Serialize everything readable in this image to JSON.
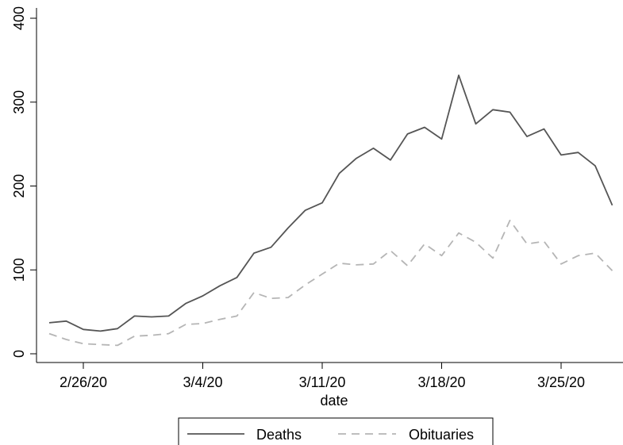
{
  "chart_data": {
    "type": "line",
    "title": "",
    "xlabel": "date",
    "ylabel": "",
    "ylim": [
      0,
      400
    ],
    "yticks": [
      0,
      100,
      200,
      300,
      400
    ],
    "xticks": [
      "2/26/20",
      "3/4/20",
      "3/11/20",
      "3/18/20",
      "3/25/20"
    ],
    "x": [
      "2/24/20",
      "2/25/20",
      "2/26/20",
      "2/27/20",
      "2/28/20",
      "2/29/20",
      "3/1/20",
      "3/2/20",
      "3/3/20",
      "3/4/20",
      "3/5/20",
      "3/6/20",
      "3/7/20",
      "3/8/20",
      "3/9/20",
      "3/10/20",
      "3/11/20",
      "3/12/20",
      "3/13/20",
      "3/14/20",
      "3/15/20",
      "3/16/20",
      "3/17/20",
      "3/18/20",
      "3/19/20",
      "3/20/20",
      "3/21/20",
      "3/22/20",
      "3/23/20",
      "3/24/20",
      "3/25/20",
      "3/26/20",
      "3/27/20",
      "3/28/20",
      "3/29/20"
    ],
    "series": [
      {
        "name": "Deaths",
        "color": "#555555",
        "dash": "solid",
        "values": [
          37,
          39,
          29,
          27,
          30,
          45,
          44,
          45,
          60,
          69,
          81,
          91,
          120,
          127,
          150,
          171,
          180,
          215,
          233,
          245,
          231,
          262,
          270,
          256,
          332,
          274,
          291,
          288,
          259,
          268,
          237,
          240,
          224,
          177,
          null
        ]
      },
      {
        "name": "Obituaries",
        "color": "#b5b5b5",
        "dash": "dashed",
        "values": [
          24,
          17,
          12,
          11,
          10,
          21,
          22,
          24,
          35,
          36,
          41,
          45,
          73,
          66,
          67,
          82,
          95,
          108,
          106,
          107,
          123,
          105,
          131,
          117,
          144,
          133,
          114,
          159,
          131,
          134,
          107,
          117,
          120,
          99,
          null
        ]
      }
    ],
    "grid": false,
    "legend": {
      "placement": "bottom",
      "entries": [
        "Deaths",
        "Obituaries"
      ]
    }
  }
}
